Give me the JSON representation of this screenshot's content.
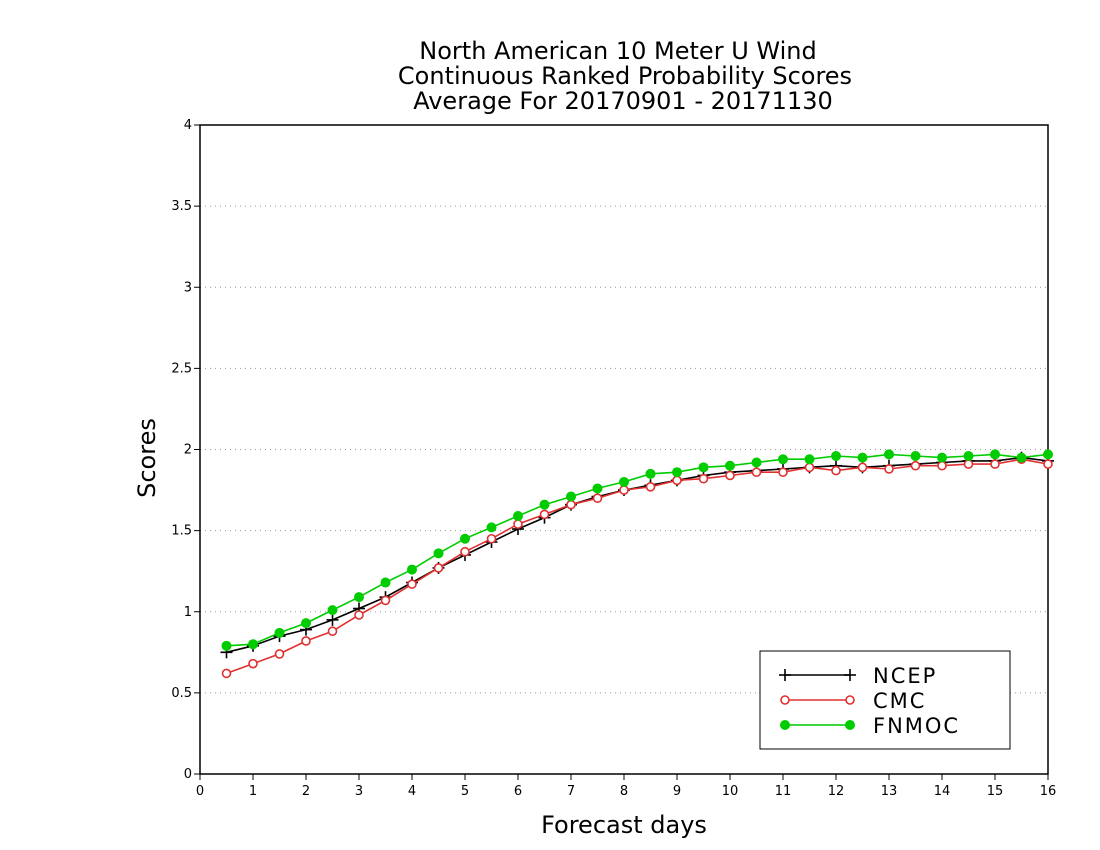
{
  "chart_data": {
    "type": "line",
    "title_lines": [
      "North American 10 Meter U Wind",
      "Continuous Ranked Probability Scores",
      "Average For 20170901 - 20171130"
    ],
    "xlabel": "Forecast days",
    "ylabel": "Scores",
    "xlim": [
      0,
      16
    ],
    "ylim": [
      0,
      4
    ],
    "xticks": [
      "0",
      "1",
      "2",
      "3",
      "4",
      "5",
      "6",
      "7",
      "8",
      "9",
      "10",
      "11",
      "12",
      "13",
      "14",
      "15",
      "16"
    ],
    "yticks": [
      "0",
      "0.5",
      "1",
      "1.5",
      "2",
      "2.5",
      "3",
      "3.5",
      "4"
    ],
    "grid": "horizontal-dotted",
    "legend_position": "bottom-right",
    "x": [
      0.5,
      1,
      1.5,
      2,
      2.5,
      3,
      3.5,
      4,
      4.5,
      5,
      5.5,
      6,
      6.5,
      7,
      7.5,
      8,
      8.5,
      9,
      9.5,
      10,
      10.5,
      11,
      11.5,
      12,
      12.5,
      13,
      13.5,
      14,
      14.5,
      15,
      15.5,
      16
    ],
    "series": [
      {
        "name": "NCEP",
        "color": "#000000",
        "marker": "plus",
        "values": [
          0.75,
          0.79,
          0.85,
          0.89,
          0.95,
          1.02,
          1.09,
          1.18,
          1.27,
          1.35,
          1.43,
          1.51,
          1.58,
          1.66,
          1.71,
          1.75,
          1.78,
          1.81,
          1.84,
          1.86,
          1.87,
          1.88,
          1.89,
          1.9,
          1.89,
          1.9,
          1.91,
          1.92,
          1.93,
          1.93,
          1.95,
          1.93
        ]
      },
      {
        "name": "CMC",
        "color": "#e03030",
        "marker": "open-circle",
        "values": [
          0.62,
          0.68,
          0.74,
          0.82,
          0.88,
          0.98,
          1.07,
          1.17,
          1.27,
          1.37,
          1.45,
          1.54,
          1.6,
          1.66,
          1.7,
          1.75,
          1.77,
          1.81,
          1.82,
          1.84,
          1.86,
          1.86,
          1.89,
          1.87,
          1.89,
          1.88,
          1.9,
          1.9,
          1.91,
          1.91,
          1.94,
          1.91
        ]
      },
      {
        "name": "FNMOC",
        "color": "#00cc00",
        "marker": "filled-circle",
        "values": [
          0.79,
          0.8,
          0.87,
          0.93,
          1.01,
          1.09,
          1.18,
          1.26,
          1.36,
          1.45,
          1.52,
          1.59,
          1.66,
          1.71,
          1.76,
          1.8,
          1.85,
          1.86,
          1.89,
          1.9,
          1.92,
          1.94,
          1.94,
          1.96,
          1.95,
          1.97,
          1.96,
          1.95,
          1.96,
          1.97,
          1.95,
          1.97
        ]
      }
    ]
  }
}
